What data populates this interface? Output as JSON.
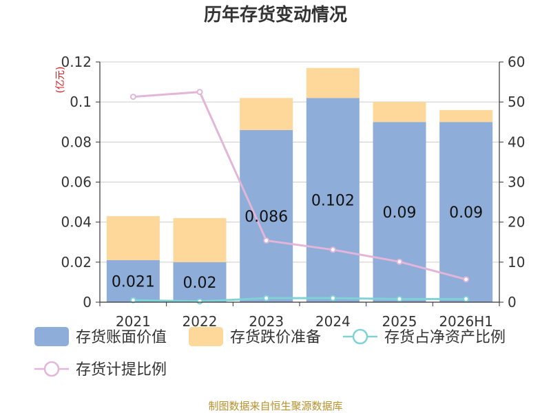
{
  "chart_data": {
    "type": "bar",
    "title": "历年存货变动情况",
    "categories": [
      "2021",
      "2022",
      "2023",
      "2024",
      "2025",
      "2026H1"
    ],
    "left_axis": {
      "unit_label": "(亿元)",
      "range": [
        0,
        0.12
      ],
      "ticks": [
        "0",
        "0.02",
        "0.04",
        "0.06",
        "0.08",
        "0.1",
        "0.12"
      ]
    },
    "right_axis": {
      "unit_label": "%",
      "range": [
        0,
        60
      ],
      "ticks": [
        "0",
        "10",
        "20",
        "30",
        "40",
        "50",
        "60"
      ]
    },
    "series": [
      {
        "name": "存货账面价值",
        "kind": "bar-stack-bottom",
        "axis": "left",
        "color": "#8eadd9",
        "values": [
          0.021,
          0.02,
          0.086,
          0.102,
          0.09,
          0.09
        ],
        "labels": [
          "0.021",
          "0.02",
          "0.086",
          "0.102",
          "0.09",
          "0.09"
        ]
      },
      {
        "name": "存货跌价准备",
        "kind": "bar-stack-top",
        "axis": "left",
        "color": "#fdd89a",
        "values": [
          0.022,
          0.022,
          0.016,
          0.015,
          0.01,
          0.006
        ]
      },
      {
        "name": "存货占净资产比例",
        "kind": "line",
        "axis": "right",
        "color": "#7fd3d6",
        "values": [
          0.5,
          0.2,
          1.0,
          1.0,
          0.8,
          0.8
        ]
      },
      {
        "name": "存货计提比例",
        "kind": "line",
        "axis": "right",
        "color": "#e2b5d9",
        "values": [
          51.3,
          52.5,
          15.4,
          13.1,
          10.1,
          5.7
        ]
      }
    ],
    "grid": true,
    "legend_position": "bottom"
  },
  "footer": {
    "source": "制图数据来自恒生聚源数据库"
  }
}
